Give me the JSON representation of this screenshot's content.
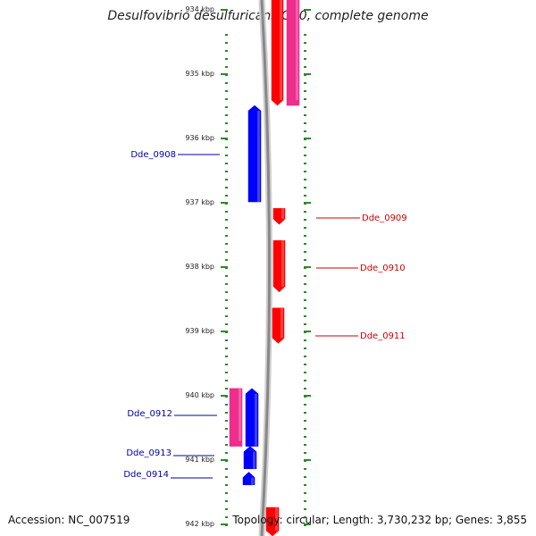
{
  "title": "Desulfovibrio desulfuricans G20, complete genome",
  "accession": "Accession: NC_007519",
  "topology": "Topology: circular; Length: 3,730,232 bp; Genes: 3,855",
  "axis": {
    "unit": "kbp",
    "start_kbp": 933.8,
    "end_kbp": 942.2
  },
  "ticks": [
    {
      "kbp": 934,
      "label": "934 kbp"
    },
    {
      "kbp": 935,
      "label": "935 kbp"
    },
    {
      "kbp": 936,
      "label": "936 kbp"
    },
    {
      "kbp": 937,
      "label": "937 kbp"
    },
    {
      "kbp": 938,
      "label": "938 kbp"
    },
    {
      "kbp": 939,
      "label": "939 kbp"
    },
    {
      "kbp": 940,
      "label": "940 kbp"
    },
    {
      "kbp": 941,
      "label": "941 kbp"
    },
    {
      "kbp": 942,
      "label": "942 kbp"
    }
  ],
  "colors": {
    "forward_cds": "#ff0000",
    "reverse_cds": "#0000ff",
    "rna": "#ee2d8c",
    "backbone": "#888888",
    "ticks": "#2a8a2a",
    "label_forward": "#cc0000",
    "label_reverse": "#0000aa"
  },
  "features": [
    {
      "strand": "reverse",
      "type": "rna",
      "start_kbp": 933.8,
      "end_kbp": 935.5,
      "track": "outer"
    },
    {
      "strand": "forward",
      "type": "cds",
      "start_kbp": 933.8,
      "end_kbp": 935.5,
      "track": "inner",
      "direction": "down"
    },
    {
      "strand": "reverse",
      "type": "cds",
      "start_kbp": 935.5,
      "end_kbp": 937.0,
      "track": "inner",
      "direction": "up",
      "label": "Dde_0908"
    },
    {
      "strand": "forward",
      "type": "cds",
      "start_kbp": 937.1,
      "end_kbp": 937.35,
      "track": "inner",
      "direction": "down",
      "label": "Dde_0909"
    },
    {
      "strand": "forward",
      "type": "cds",
      "start_kbp": 937.6,
      "end_kbp": 938.4,
      "track": "inner",
      "direction": "down",
      "label": "Dde_0910"
    },
    {
      "strand": "forward",
      "type": "cds",
      "start_kbp": 938.65,
      "end_kbp": 939.2,
      "track": "inner",
      "direction": "down",
      "label": "Dde_0911"
    },
    {
      "strand": "reverse",
      "type": "rna",
      "start_kbp": 939.9,
      "end_kbp": 940.8,
      "track": "outer",
      "label": "Dde_0912"
    },
    {
      "strand": "reverse",
      "type": "cds",
      "start_kbp": 939.9,
      "end_kbp": 940.8,
      "track": "inner",
      "direction": "up"
    },
    {
      "strand": "reverse",
      "type": "cds",
      "start_kbp": 940.8,
      "end_kbp": 941.15,
      "track": "inner",
      "direction": "up",
      "label": "Dde_0913"
    },
    {
      "strand": "reverse",
      "type": "cds",
      "start_kbp": 941.2,
      "end_kbp": 941.4,
      "track": "inner",
      "direction": "up",
      "label": "Dde_0914"
    },
    {
      "strand": "forward",
      "type": "cds",
      "start_kbp": 941.75,
      "end_kbp": 942.2,
      "track": "inner",
      "direction": "down"
    }
  ]
}
